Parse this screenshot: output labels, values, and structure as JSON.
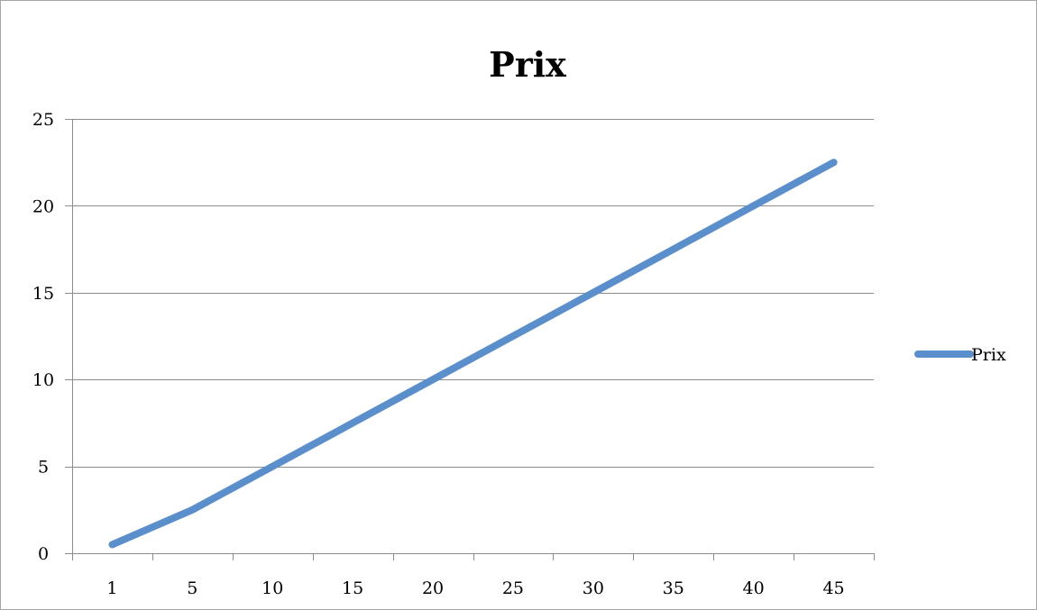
{
  "chart_data": {
    "type": "line",
    "title": "Prix",
    "xlabel": "",
    "ylabel": "",
    "categories": [
      "1",
      "5",
      "10",
      "15",
      "20",
      "25",
      "30",
      "35",
      "40",
      "45"
    ],
    "series": [
      {
        "name": "Prix",
        "values": [
          0.5,
          2.5,
          5,
          7.5,
          10,
          12.5,
          15,
          17.5,
          20,
          22.5
        ],
        "color": "#5b8fcb"
      }
    ],
    "ylim": [
      0,
      25
    ],
    "yticks": [
      0,
      5,
      10,
      15,
      20,
      25
    ],
    "grid": true,
    "legend_position": "right"
  }
}
